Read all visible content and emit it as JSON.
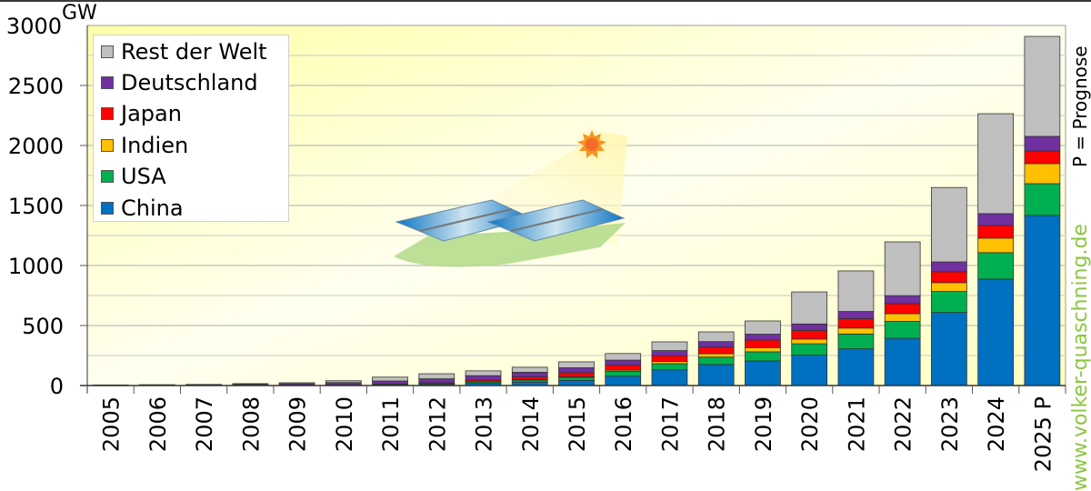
{
  "chart_data": {
    "type": "bar",
    "stacked": true,
    "title": "",
    "xlabel": "",
    "ylabel": "GW",
    "ylim": [
      0,
      3000
    ],
    "yticks": [
      0,
      500,
      1000,
      1500,
      2000,
      2500,
      3000
    ],
    "grid": true,
    "legend_position": "upper-left",
    "categories": [
      "2005",
      "2006",
      "2007",
      "2008",
      "2009",
      "2010",
      "2011",
      "2012",
      "2013",
      "2014",
      "2015",
      "2016",
      "2017",
      "2018",
      "2019",
      "2020",
      "2021",
      "2022",
      "2023",
      "2024",
      "2025 P"
    ],
    "series": [
      {
        "name": "China",
        "color": "#0070c0",
        "values": [
          0.1,
          0.1,
          0.1,
          0.1,
          0.3,
          0.8,
          3,
          7,
          18,
          28,
          43,
          78,
          131,
          175,
          205,
          253,
          306,
          393,
          609,
          887,
          1417
        ]
      },
      {
        "name": "USA",
        "color": "#00b050",
        "values": [
          0.5,
          0.6,
          0.8,
          1.2,
          1.6,
          2.5,
          4.4,
          7.7,
          12,
          18,
          25,
          41,
          51,
          62,
          76,
          95,
          123,
          142,
          175,
          220,
          265
        ]
      },
      {
        "name": "Indien",
        "color": "#ffc000",
        "values": [
          0,
          0,
          0,
          0,
          0,
          0.1,
          0.5,
          1,
          2.3,
          3.4,
          5.6,
          9.6,
          18,
          28,
          35,
          39,
          50,
          63,
          73,
          121,
          167
        ]
      },
      {
        "name": "Japan",
        "color": "#ff0000",
        "values": [
          1.4,
          1.7,
          1.9,
          2.1,
          2.6,
          3.6,
          5,
          6.6,
          14,
          23,
          34,
          42,
          49,
          56,
          63,
          72,
          78,
          84,
          91,
          106,
          106
        ]
      },
      {
        "name": "Deutschland",
        "color": "#7030a0",
        "values": [
          2,
          2.9,
          4.2,
          6.1,
          10.6,
          18,
          25,
          34,
          36,
          38,
          40,
          41,
          42,
          45,
          49,
          54,
          60,
          67,
          82,
          98,
          121
        ]
      },
      {
        "name": "Rest der Welt",
        "color": "#bfbfbf",
        "values": [
          1.1,
          1.5,
          2.2,
          6.4,
          8,
          15,
          32,
          42,
          40,
          42,
          50,
          55,
          73,
          81,
          110,
          267,
          338,
          448,
          620,
          833,
          833
        ]
      }
    ],
    "totals_approx": [
      5,
      7,
      9,
      16,
      23,
      40,
      70,
      100,
      122,
      152,
      197,
      265,
      364,
      447,
      538,
      780,
      955,
      1197,
      1650,
      2265,
      2909
    ],
    "annotations": [
      "P = Prognose",
      "www.volker-quaschning.de"
    ]
  },
  "axis": {
    "unit": "GW",
    "yticks": [
      "0",
      "500",
      "1000",
      "1500",
      "2000",
      "2500",
      "3000"
    ]
  },
  "legend": {
    "items": [
      {
        "label": "Rest der Welt",
        "color": "#bfbfbf"
      },
      {
        "label": "Deutschland",
        "color": "#7030a0"
      },
      {
        "label": "Japan",
        "color": "#ff0000"
      },
      {
        "label": "Indien",
        "color": "#ffc000"
      },
      {
        "label": "USA",
        "color": "#00b050"
      },
      {
        "label": "China",
        "color": "#0070c0"
      }
    ]
  },
  "annotation_prognose": "P = Prognose",
  "watermark": "www.volker-quaschning.de",
  "illustration": "solar-panels-with-sun-icon"
}
